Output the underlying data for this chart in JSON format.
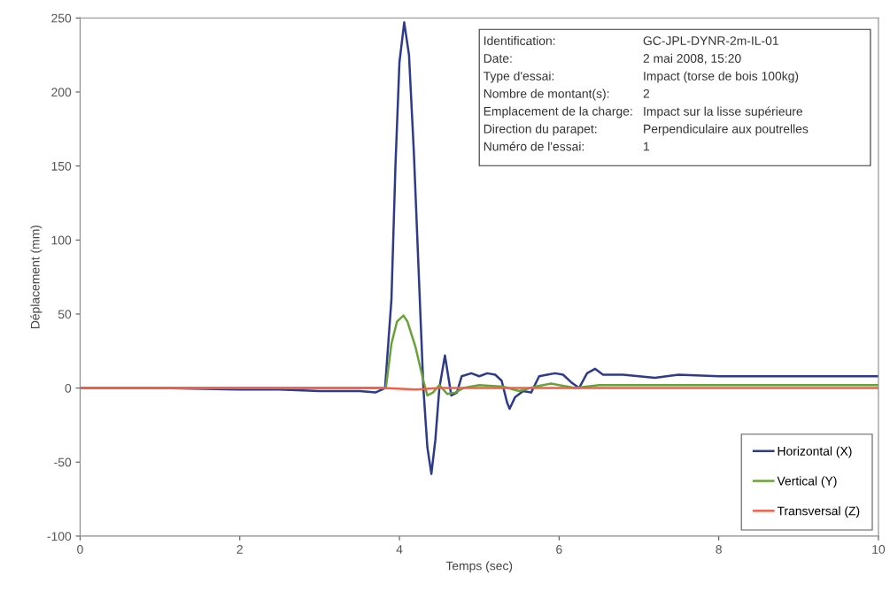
{
  "chart_data": {
    "type": "line",
    "xlabel": "Temps (sec)",
    "ylabel": "Déplacement (mm)",
    "xlim": [
      0,
      10
    ],
    "xticks": [
      0,
      2,
      4,
      6,
      8,
      10
    ],
    "ylim": [
      -100,
      250
    ],
    "yticks": [
      -100,
      -50,
      0,
      50,
      100,
      150,
      200,
      250
    ],
    "grid": false,
    "legend": "bottom right",
    "marker": "none",
    "line_style": "solid",
    "series": [
      {
        "name": "Horizontal (X)",
        "color": "#2e3a8c",
        "x": [
          0,
          1,
          2,
          2.5,
          3.0,
          3.5,
          3.7,
          3.82,
          3.9,
          3.95,
          4.0,
          4.06,
          4.12,
          4.18,
          4.24,
          4.3,
          4.35,
          4.4,
          4.45,
          4.5,
          4.57,
          4.65,
          4.72,
          4.78,
          4.9,
          5.0,
          5.1,
          5.2,
          5.28,
          5.35,
          5.38,
          5.45,
          5.55,
          5.65,
          5.75,
          5.85,
          5.95,
          6.05,
          6.15,
          6.25,
          6.35,
          6.45,
          6.55,
          6.8,
          7.0,
          7.2,
          7.5,
          8.0,
          8.5,
          9.0,
          9.5,
          10
        ],
        "values": [
          0,
          0,
          -1,
          -1,
          -2,
          -2,
          -3,
          0,
          60,
          150,
          220,
          247,
          225,
          160,
          80,
          0,
          -40,
          -58,
          -35,
          0,
          22,
          -5,
          -3,
          8,
          10,
          8,
          10,
          9,
          5,
          -10,
          -14,
          -6,
          -2,
          -3,
          8,
          9,
          10,
          9,
          4,
          0,
          10,
          13,
          9,
          9,
          8,
          7,
          9,
          8,
          8,
          8,
          8,
          8
        ]
      },
      {
        "name": "Vertical (Y)",
        "color": "#6aa23a",
        "x": [
          0,
          2,
          3.83,
          3.9,
          3.97,
          4.05,
          4.1,
          4.2,
          4.3,
          4.35,
          4.42,
          4.5,
          4.6,
          4.7,
          4.8,
          5.0,
          5.3,
          5.5,
          5.7,
          5.9,
          6.0,
          6.2,
          6.5,
          7,
          8,
          10
        ],
        "values": [
          0,
          0,
          0,
          30,
          45,
          49,
          45,
          28,
          5,
          -5,
          -3,
          2,
          -4,
          -3,
          0,
          2,
          1,
          -2,
          1,
          3,
          2,
          0,
          2,
          2,
          2,
          2
        ]
      },
      {
        "name": "Transversal (Z)",
        "color": "#f0604a",
        "x": [
          0,
          3.8,
          4.2,
          4.5,
          10
        ],
        "values": [
          0,
          0,
          -1,
          0,
          0
        ]
      }
    ],
    "annotations": [
      "Identification:",
      "GC-JPL-DYNR-2m-IL-01",
      "Date:",
      "2 mai 2008, 15:20",
      "Type d'essai:",
      "Impact (torse de bois 100kg)",
      "Nombre de montant(s):",
      "2",
      "Emplacement de la charge:",
      "Impact sur la lisse supérieure",
      "Direction du parapet:",
      "Perpendiculaire aux poutrelles",
      "Numéro de l'essai:",
      "1"
    ]
  }
}
